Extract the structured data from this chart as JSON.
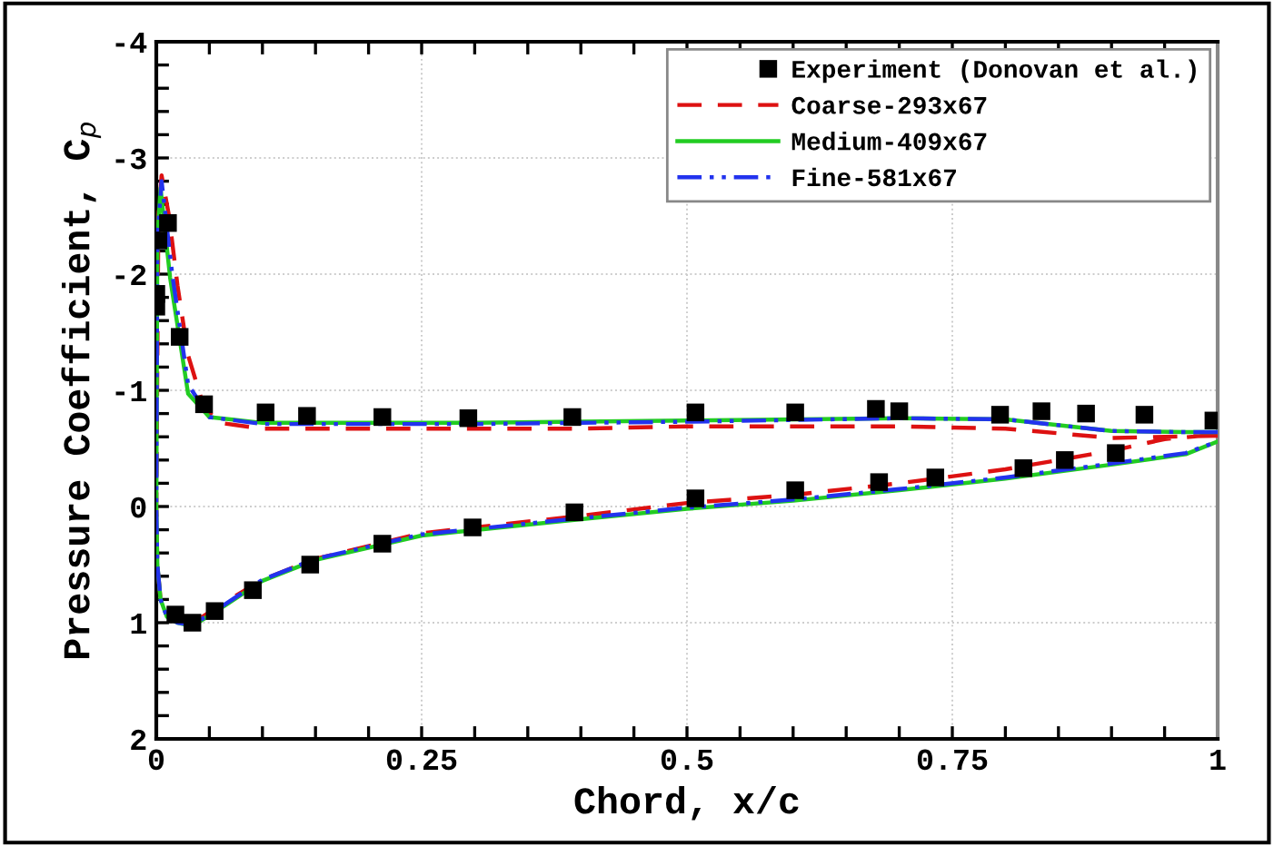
{
  "chart_data": {
    "type": "line",
    "xlabel": "Chord, x/c",
    "ylabel": "Pressure Coefficient, C$_{p}$",
    "xlim": [
      0,
      1
    ],
    "ylim": [
      2,
      -4
    ],
    "xticks": [
      0,
      {
        "value": 0.05,
        "label": null
      },
      {
        "value": 0.1,
        "label": null
      },
      {
        "value": 0.15,
        "label": null
      },
      {
        "value": 0.2,
        "label": null
      },
      0.25,
      {
        "value": 0.3,
        "label": null
      },
      {
        "value": 0.35,
        "label": null
      },
      {
        "value": 0.4,
        "label": null
      },
      {
        "value": 0.45,
        "label": null
      },
      0.5,
      {
        "value": 0.55,
        "label": null
      },
      {
        "value": 0.6,
        "label": null
      },
      {
        "value": 0.65,
        "label": null
      },
      {
        "value": 0.7,
        "label": null
      },
      0.75,
      {
        "value": 0.8,
        "label": null
      },
      {
        "value": 0.85,
        "label": null
      },
      {
        "value": 0.9,
        "label": null
      },
      {
        "value": 0.95,
        "label": null
      },
      1
    ],
    "yticks": [
      -4,
      {
        "value": -3.8,
        "label": null
      },
      {
        "value": -3.6,
        "label": null
      },
      {
        "value": -3.4,
        "label": null
      },
      {
        "value": -3.2,
        "label": null
      },
      -3,
      {
        "value": -2.8,
        "label": null
      },
      {
        "value": -2.6,
        "label": null
      },
      {
        "value": -2.4,
        "label": null
      },
      {
        "value": -2.2,
        "label": null
      },
      -2,
      {
        "value": -1.8,
        "label": null
      },
      {
        "value": -1.6,
        "label": null
      },
      {
        "value": -1.4,
        "label": null
      },
      {
        "value": -1.2,
        "label": null
      },
      -1,
      {
        "value": -0.8,
        "label": null
      },
      {
        "value": -0.6,
        "label": null
      },
      {
        "value": -0.4,
        "label": null
      },
      {
        "value": -0.2,
        "label": null
      },
      0,
      {
        "value": 0.2,
        "label": null
      },
      {
        "value": 0.4,
        "label": null
      },
      {
        "value": 0.6,
        "label": null
      },
      {
        "value": 0.8,
        "label": null
      },
      1,
      {
        "value": 1.2,
        "label": null
      },
      {
        "value": 1.4,
        "label": null
      },
      {
        "value": 1.6,
        "label": null
      },
      {
        "value": 1.8,
        "label": null
      },
      2
    ],
    "grid": true,
    "legend": "top right",
    "series": [
      {
        "name": "Experiment (Donovan et al.)",
        "type": "scatter",
        "marker": "square",
        "color": "#000000",
        "x": [
          0.002,
          0,
          0,
          0.011,
          0.022,
          0.045,
          0.103,
          0.142,
          0.213,
          0.294,
          0.392,
          0.508,
          0.602,
          0.678,
          0.7,
          0.795,
          0.834,
          0.876,
          0.931,
          0.996,
          0.018,
          0.034,
          0.055,
          0.091,
          0.145,
          0.213,
          0.298,
          0.394,
          0.508,
          0.602,
          0.681,
          0.734,
          0.817,
          0.856,
          0.904
        ],
        "values": [
          -2.29,
          -1.83,
          -1.72,
          -2.44,
          -1.46,
          -0.88,
          -0.81,
          -0.78,
          -0.77,
          -0.76,
          -0.77,
          -0.81,
          -0.81,
          -0.84,
          -0.82,
          -0.79,
          -0.82,
          -0.8,
          -0.79,
          -0.74,
          0.93,
          1.0,
          0.9,
          0.72,
          0.5,
          0.32,
          0.18,
          0.05,
          -0.07,
          -0.14,
          -0.21,
          -0.25,
          -0.33,
          -0.4,
          -0.46
        ]
      },
      {
        "name": "Coarse-293x67",
        "type": "line",
        "line_style": "dashed",
        "color": "#dd1111",
        "x": [
          1,
          0.95,
          0.9,
          0.8,
          0.7,
          0.5,
          0.4,
          0.2,
          0.1,
          0.06,
          0.045,
          0.03,
          0.02,
          0.012,
          0.005,
          0.002,
          0,
          0.001,
          0.004,
          0.01,
          0.02,
          0.035,
          0.06,
          0.1,
          0.15,
          0.25,
          0.4,
          0.5,
          0.6,
          0.7,
          0.8,
          0.9,
          0.95,
          1
        ],
        "values": [
          -0.61,
          -0.6,
          -0.59,
          -0.67,
          -0.69,
          -0.69,
          -0.67,
          -0.67,
          -0.67,
          -0.72,
          -0.85,
          -1.3,
          -1.9,
          -2.5,
          -2.85,
          -2.5,
          0,
          0.5,
          0.8,
          0.93,
          0.98,
          1.0,
          0.85,
          0.63,
          0.45,
          0.23,
          0.08,
          -0.03,
          -0.1,
          -0.2,
          -0.32,
          -0.48,
          -0.58,
          -0.62
        ]
      },
      {
        "name": "Medium-409x67",
        "type": "line",
        "line_style": "solid",
        "color": "#22cc22",
        "x": [
          1,
          0.97,
          0.9,
          0.8,
          0.7,
          0.5,
          0.4,
          0.3,
          0.1,
          0.05,
          0.03,
          0.013,
          0.004,
          0.001,
          0,
          0.001,
          0.004,
          0.01,
          0.02,
          0.034,
          0.06,
          0.1,
          0.15,
          0.25,
          0.4,
          0.5,
          0.6,
          0.7,
          0.8,
          0.9,
          0.97,
          1
        ],
        "values": [
          -0.64,
          -0.64,
          -0.65,
          -0.75,
          -0.76,
          -0.74,
          -0.73,
          -0.72,
          -0.72,
          -0.77,
          -0.97,
          -1.97,
          -2.74,
          -2.3,
          0,
          0.5,
          0.8,
          0.95,
          1.0,
          1.03,
          0.88,
          0.64,
          0.46,
          0.25,
          0.11,
          0.02,
          -0.05,
          -0.14,
          -0.24,
          -0.36,
          -0.45,
          -0.56
        ]
      },
      {
        "name": "Fine-581x67",
        "type": "line",
        "line_style": "dashdotdot",
        "color": "#2233ee",
        "x": [
          1,
          0.97,
          0.9,
          0.8,
          0.7,
          0.5,
          0.4,
          0.3,
          0.1,
          0.05,
          0.03,
          0.015,
          0.005,
          0.001,
          0,
          0.001,
          0.004,
          0.01,
          0.02,
          0.034,
          0.06,
          0.1,
          0.15,
          0.25,
          0.4,
          0.5,
          0.6,
          0.7,
          0.8,
          0.9,
          0.97,
          1
        ],
        "values": [
          -0.64,
          -0.64,
          -0.65,
          -0.75,
          -0.76,
          -0.73,
          -0.72,
          -0.71,
          -0.71,
          -0.77,
          -1.05,
          -2.0,
          -2.8,
          -2.3,
          0,
          0.5,
          0.8,
          0.95,
          1.0,
          1.02,
          0.87,
          0.63,
          0.45,
          0.24,
          0.1,
          0.01,
          -0.06,
          -0.15,
          -0.25,
          -0.37,
          -0.46,
          -0.56
        ]
      }
    ]
  }
}
